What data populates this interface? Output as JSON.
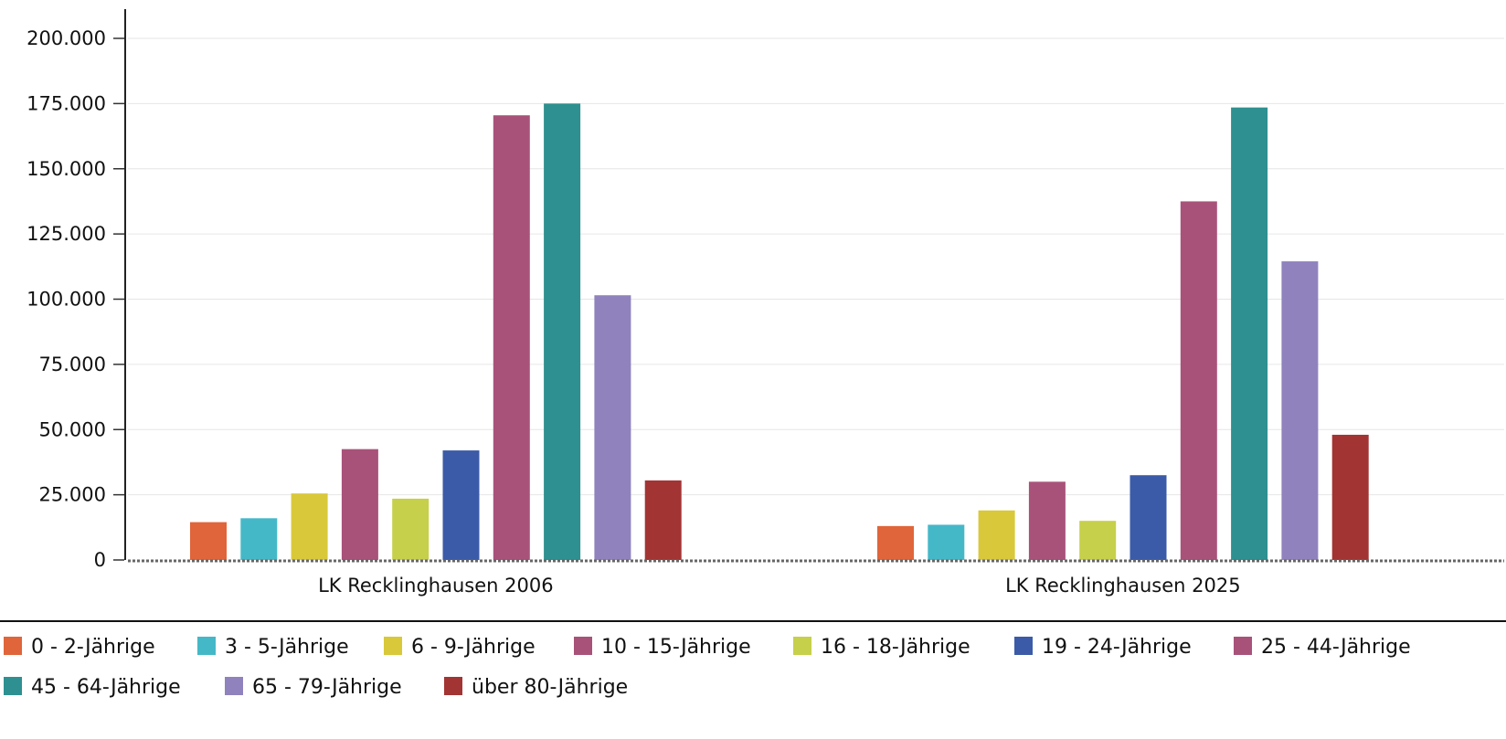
{
  "chart_data": {
    "type": "bar",
    "title": "",
    "xlabel": "",
    "ylabel": "",
    "ylim": [
      0,
      200000
    ],
    "yticks": [
      0,
      25000,
      50000,
      75000,
      100000,
      125000,
      150000,
      175000,
      200000
    ],
    "ytick_labels": [
      "0",
      "25.000",
      "50.000",
      "75.000",
      "100.000",
      "125.000",
      "150.000",
      "175.000",
      "200.000"
    ],
    "grid": true,
    "legend_position": "bottom",
    "categories": [
      "LK Recklinghausen 2006",
      "LK Recklinghausen 2025"
    ],
    "series": [
      {
        "name": "0 - 2-Jährige",
        "color": "#e0653a",
        "values": [
          14500,
          13000
        ]
      },
      {
        "name": "3 - 5-Jährige",
        "color": "#45b8c8",
        "values": [
          16000,
          13500
        ]
      },
      {
        "name": "6 - 9-Jährige",
        "color": "#d9c83a",
        "values": [
          25500,
          19000
        ]
      },
      {
        "name": "10 - 15-Jährige",
        "color": "#a8527a",
        "values": [
          42500,
          30000
        ]
      },
      {
        "name": "16 - 18-Jährige",
        "color": "#c6d04a",
        "values": [
          23500,
          15000
        ]
      },
      {
        "name": "19 - 24-Jährige",
        "color": "#3b5ba8",
        "values": [
          42000,
          32500
        ]
      },
      {
        "name": "25 - 44-Jährige",
        "color": "#a8527a",
        "values": [
          170500,
          137500
        ]
      },
      {
        "name": "45 - 64-Jährige",
        "color": "#2e9090",
        "values": [
          175000,
          173500
        ]
      },
      {
        "name": "65 - 79-Jährige",
        "color": "#8f82bd",
        "values": [
          101500,
          114500
        ]
      },
      {
        "name": "über 80-Jährige",
        "color": "#a33434",
        "values": [
          30500,
          48000
        ]
      }
    ]
  }
}
